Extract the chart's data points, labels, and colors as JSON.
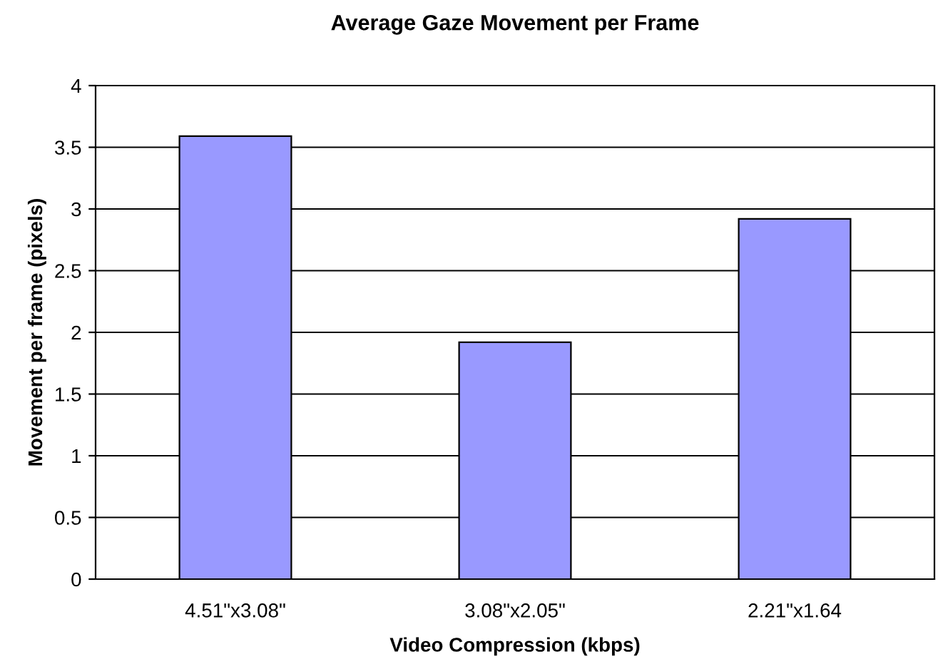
{
  "chart_data": {
    "type": "bar",
    "title": "Average Gaze Movement per Frame",
    "xlabel": "Video Compression (kbps)",
    "ylabel": "Movement per frame (pixels)",
    "categories": [
      "4.51\"x3.08\"",
      "3.08\"x2.05\"",
      "2.21\"x1.64"
    ],
    "values": [
      3.59,
      1.92,
      2.92
    ],
    "color": "#9999ff",
    "ylim": [
      0,
      4
    ],
    "yticks": [
      0,
      0.5,
      1,
      1.5,
      2,
      2.5,
      3,
      3.5,
      4
    ],
    "grid": "y",
    "legend": false
  }
}
